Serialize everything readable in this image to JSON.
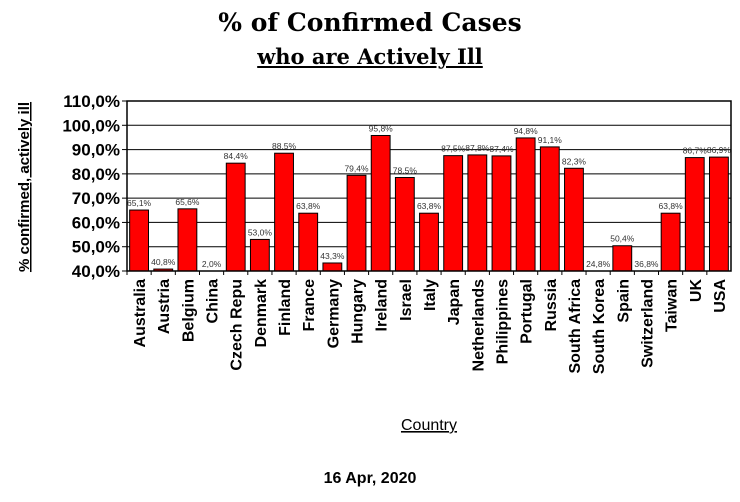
{
  "chart_data": {
    "type": "bar",
    "title": "% of Confirmed Cases",
    "subtitle": "who are Actively Ill",
    "xlabel": "Country",
    "ylabel": "% confirmed, actively ill",
    "footer": "16 Apr, 2020",
    "ylim": [
      40,
      110
    ],
    "yticks": [
      40,
      50,
      60,
      70,
      80,
      90,
      100,
      110
    ],
    "ytick_labels": [
      "40,0%",
      "50,0%",
      "60,0%",
      "70,0%",
      "80,0%",
      "90,0%",
      "100,0%",
      "110,0%"
    ],
    "grid": "horizontal",
    "bar_color": "#ff0000",
    "categories": [
      "Australia",
      "Austria",
      "Belgium",
      "China",
      "Czech Repu",
      "Denmark",
      "Finland",
      "France",
      "Germany",
      "Hungary",
      "Ireland",
      "Israel",
      "Italy",
      "Japan",
      "Netherlands",
      "Philippines",
      "Portugal",
      "Russia",
      "South Africa",
      "South Korea",
      "Spain",
      "Switzerland",
      "Taiwan",
      "UK",
      "USA"
    ],
    "values": [
      65.1,
      40.8,
      65.6,
      2.0,
      84.4,
      53.0,
      88.5,
      63.8,
      43.3,
      79.4,
      95.8,
      78.5,
      63.8,
      87.5,
      87.8,
      87.4,
      94.8,
      91.1,
      82.3,
      24.8,
      50.4,
      36.8,
      63.8,
      86.7,
      86.9
    ],
    "value_labels": [
      "65,1%",
      "40,8%",
      "65,6%",
      "2,0%",
      "84,4%",
      "53,0%",
      "88,5%",
      "63,8%",
      "43,3%",
      "79,4%",
      "95,8%",
      "78,5%",
      "63,8%",
      "87,5%",
      "87,8%",
      "87,4%",
      "94,8%",
      "91,1%",
      "82,3%",
      "24,8%",
      "50,4%",
      "36,8%",
      "63,8%",
      "86,7%",
      "86,9%"
    ]
  }
}
